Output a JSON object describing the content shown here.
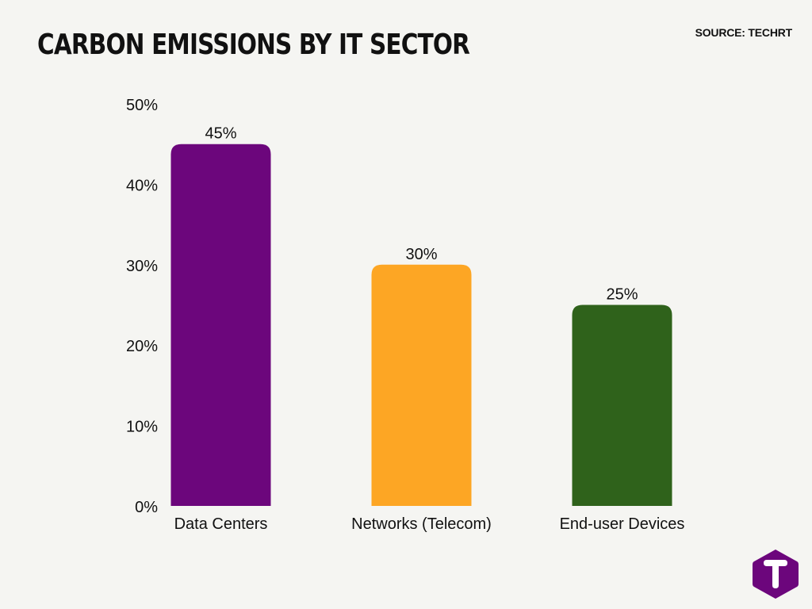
{
  "header": {
    "title": "CARBON EMISSIONS BY IT SECTOR",
    "source": "SOURCE: TECHRT"
  },
  "colors": {
    "background": "#f5f5f2",
    "accent": "#6c067c",
    "logo_letter": "#ffffff"
  },
  "logo": {
    "icon": "techrt-logo-icon",
    "letter": "T"
  },
  "chart_data": {
    "type": "bar",
    "title": "CARBON EMISSIONS BY IT SECTOR",
    "xlabel": "",
    "ylabel": "",
    "categories": [
      "Data Centers",
      "Networks (Telecom)",
      "End-user Devices"
    ],
    "values": [
      45,
      30,
      25
    ],
    "value_labels": [
      "45%",
      "30%",
      "25%"
    ],
    "bar_colors": [
      "#6c067c",
      "#fda624",
      "#2f621b"
    ],
    "ylim": [
      0,
      50
    ],
    "yticks": [
      0,
      10,
      20,
      30,
      40,
      50
    ],
    "ytick_labels": [
      "0%",
      "10%",
      "20%",
      "30%",
      "40%",
      "50%"
    ],
    "grid": false,
    "legend": "none"
  }
}
